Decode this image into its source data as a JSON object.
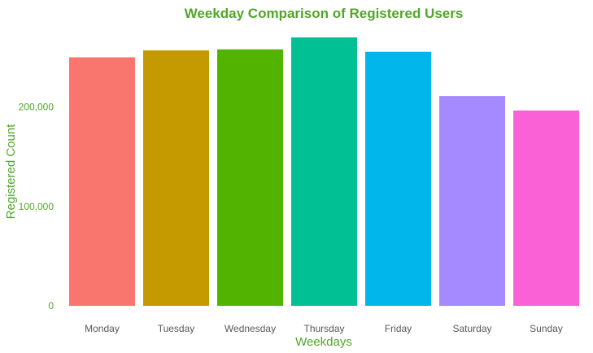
{
  "chart_data": {
    "type": "bar",
    "title": "Weekday Comparison of Registered Users",
    "xlabel": "Weekdays",
    "ylabel": "Registered Count",
    "categories": [
      "Monday",
      "Tuesday",
      "Wednesday",
      "Thursday",
      "Friday",
      "Saturday",
      "Sunday"
    ],
    "values": [
      250000,
      257000,
      258000,
      270000,
      255500,
      211000,
      196500
    ],
    "ylim": [
      0,
      270000
    ],
    "yticks": [
      0,
      100000,
      200000
    ],
    "ytick_labels": [
      "0",
      "100,000",
      "200,000"
    ],
    "colors": [
      "#F8766D",
      "#C49A00",
      "#53B400",
      "#00C094",
      "#00B6EB",
      "#A58AFF",
      "#FB61D7"
    ],
    "text_color": "#53A52A",
    "tick_label_color": "#595959",
    "grid": false,
    "legend": "none"
  }
}
